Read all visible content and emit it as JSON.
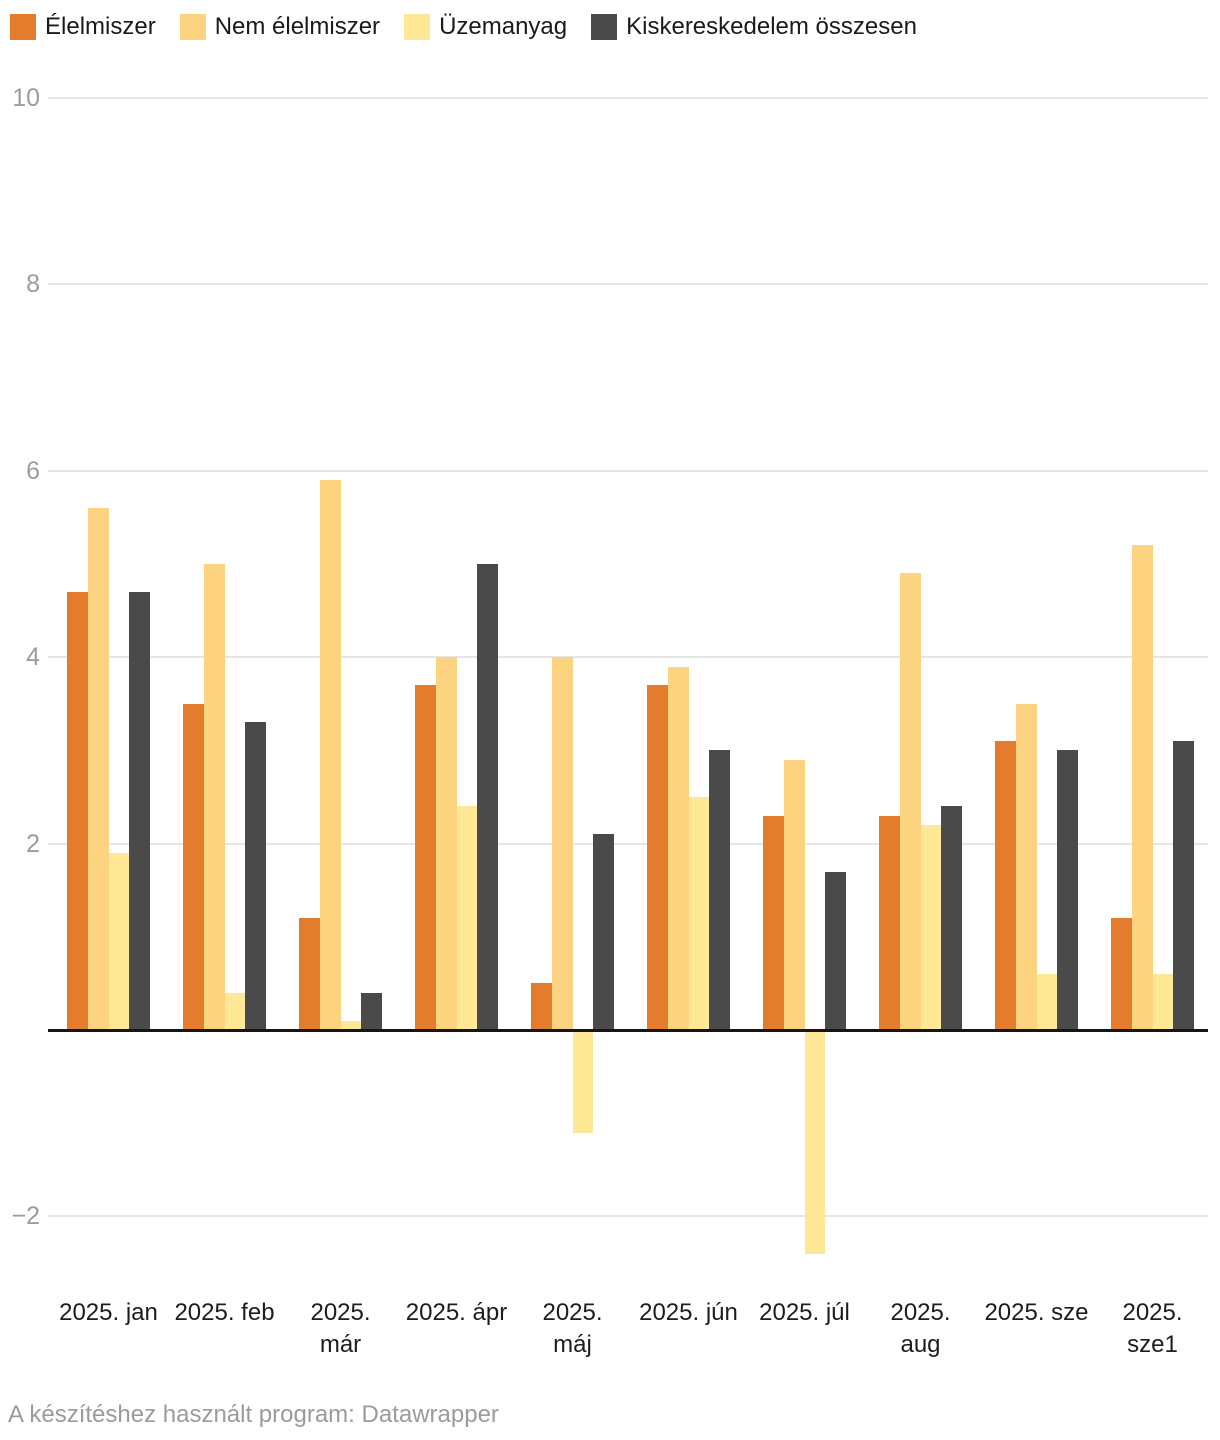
{
  "footer": {
    "text": "A készítéshez használt program: Datawrapper"
  },
  "chart_data": {
    "type": "bar",
    "title": "",
    "categories": [
      "2025. jan",
      "2025. feb",
      "2025. már",
      "2025. ápr",
      "2025. máj",
      "2025. jún",
      "2025. júl",
      "2025. aug",
      "2025. sze",
      "2025. sze1"
    ],
    "x_tick_lines": [
      [
        "2025. jan"
      ],
      [
        "2025. feb"
      ],
      [
        "2025.",
        "már"
      ],
      [
        "2025. ápr"
      ],
      [
        "2025.",
        "máj"
      ],
      [
        "2025. jún"
      ],
      [
        "2025. júl"
      ],
      [
        "2025.",
        "aug"
      ],
      [
        "2025. sze"
      ],
      [
        "2025.",
        "sze1"
      ]
    ],
    "series": [
      {
        "name": "Élelmiszer",
        "color": "#E47C2E",
        "values": [
          4.7,
          3.5,
          1.2,
          3.7,
          0.5,
          3.7,
          2.3,
          2.3,
          3.1,
          1.2
        ]
      },
      {
        "name": "Nem élelmiszer",
        "color": "#FCD480",
        "values": [
          5.6,
          5.0,
          5.9,
          4.0,
          4.0,
          3.9,
          2.9,
          4.9,
          3.5,
          5.2
        ]
      },
      {
        "name": "Üzemanyag",
        "color": "#FEE795",
        "values": [
          1.9,
          0.4,
          0.1,
          2.4,
          -1.1,
          2.5,
          -2.4,
          2.2,
          0.6,
          0.6
        ]
      },
      {
        "name": "Kiskereskedelem összesen",
        "color": "#4A4A4A",
        "values": [
          4.7,
          3.3,
          0.4,
          5.0,
          2.1,
          3.0,
          1.7,
          2.4,
          3.0,
          3.1
        ]
      }
    ],
    "y_ticks": [
      10,
      8,
      6,
      4,
      2,
      -2
    ],
    "y_tick_labels": [
      "10",
      "8",
      "6",
      "4",
      "2",
      "−2"
    ],
    "baseline": 0,
    "ylim": [
      -2.6,
      10.4
    ],
    "grid": true,
    "legend_position": "top-left",
    "xlabel": "",
    "ylabel": ""
  }
}
